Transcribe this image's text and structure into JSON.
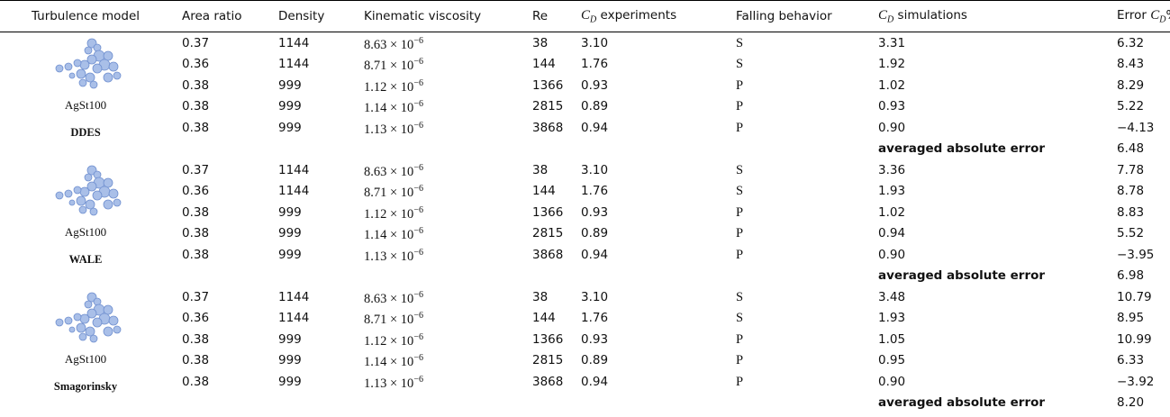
{
  "table": {
    "header": [
      "Turbulence model",
      "Area ratio",
      "Density",
      "Kinematic viscosity",
      "Re",
      {
        "symbol": "C",
        "sub": "D",
        "suffix": " experiments"
      },
      "Falling behavior",
      {
        "symbol": "C",
        "sub": "D",
        "suffix": " simulations"
      },
      {
        "prefix": "Error ",
        "symbol": "C",
        "sub": "D",
        "suffix": "%"
      }
    ],
    "groups": [
      {
        "particle": "AgSt100",
        "model": "DDES",
        "rows": [
          [
            "0.37",
            "1144",
            {
              "base": "8.63 × 10",
              "exp": "−6"
            },
            "38",
            "3.10",
            "S",
            "3.31",
            "6.32"
          ],
          [
            "0.36",
            "1144",
            {
              "base": "8.71 × 10",
              "exp": "−6"
            },
            "144",
            "1.76",
            "S",
            "1.92",
            "8.43"
          ],
          [
            "0.38",
            "999",
            {
              "base": "1.12 × 10",
              "exp": "−6"
            },
            "1366",
            "0.93",
            "P",
            "1.02",
            "8.29"
          ],
          [
            "0.38",
            "999",
            {
              "base": "1.14 × 10",
              "exp": "−6"
            },
            "2815",
            "0.89",
            "P",
            "0.93",
            "5.22"
          ],
          [
            "0.38",
            "999",
            {
              "base": "1.13 × 10",
              "exp": "−6"
            },
            "3868",
            "0.94",
            "P",
            "0.90",
            "−4.13"
          ]
        ],
        "summary": {
          "label": "averaged absolute error",
          "value": "6.48"
        }
      },
      {
        "particle": "AgSt100",
        "model": "WALE",
        "rows": [
          [
            "0.37",
            "1144",
            {
              "base": "8.63 × 10",
              "exp": "−6"
            },
            "38",
            "3.10",
            "S",
            "3.36",
            "7.78"
          ],
          [
            "0.36",
            "1144",
            {
              "base": "8.71 × 10",
              "exp": "−6"
            },
            "144",
            "1.76",
            "S",
            "1.93",
            "8.78"
          ],
          [
            "0.38",
            "999",
            {
              "base": "1.12 × 10",
              "exp": "−6"
            },
            "1366",
            "0.93",
            "P",
            "1.02",
            "8.83"
          ],
          [
            "0.38",
            "999",
            {
              "base": "1.14 × 10",
              "exp": "−6"
            },
            "2815",
            "0.89",
            "P",
            "0.94",
            "5.52"
          ],
          [
            "0.38",
            "999",
            {
              "base": "1.13 × 10",
              "exp": "−6"
            },
            "3868",
            "0.94",
            "P",
            "0.90",
            "−3.95"
          ]
        ],
        "summary": {
          "label": "averaged absolute error",
          "value": "6.98"
        }
      },
      {
        "particle": "AgSt100",
        "model": "Smagorinsky",
        "rows": [
          [
            "0.37",
            "1144",
            {
              "base": "8.63 × 10",
              "exp": "−6"
            },
            "38",
            "3.10",
            "S",
            "3.48",
            "10.79"
          ],
          [
            "0.36",
            "1144",
            {
              "base": "8.71 × 10",
              "exp": "−6"
            },
            "144",
            "1.76",
            "S",
            "1.93",
            "8.95"
          ],
          [
            "0.38",
            "999",
            {
              "base": "1.12 × 10",
              "exp": "−6"
            },
            "1366",
            "0.93",
            "P",
            "1.05",
            "10.99"
          ],
          [
            "0.38",
            "999",
            {
              "base": "1.14 × 10",
              "exp": "−6"
            },
            "2815",
            "0.89",
            "P",
            "0.95",
            "6.33"
          ],
          [
            "0.38",
            "999",
            {
              "base": "1.13 × 10",
              "exp": "−6"
            },
            "3868",
            "0.94",
            "P",
            "0.90",
            "−3.92"
          ]
        ],
        "summary": {
          "label": "averaged absolute error",
          "value": "8.20"
        }
      }
    ]
  }
}
